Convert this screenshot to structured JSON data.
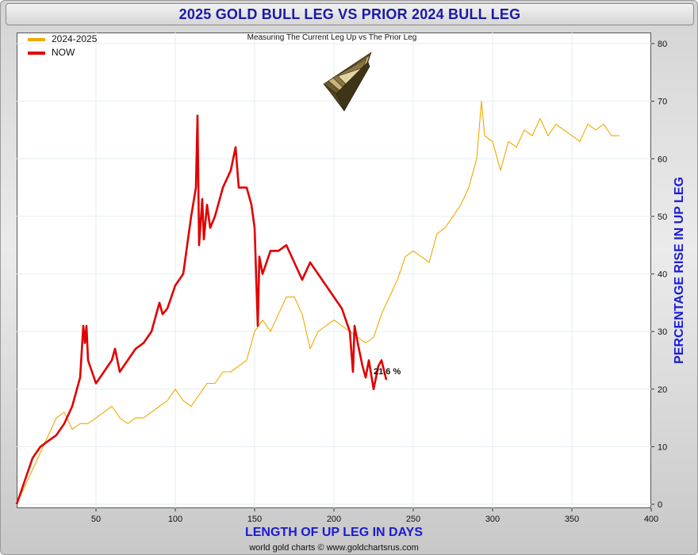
{
  "title": "2025 GOLD BULL LEG VS PRIOR 2024 BULL LEG",
  "subtitle": "Measuring The Current Leg Up vs The Prior Leg",
  "credit": "world gold charts © www.goldchartsrus.com",
  "colors": {
    "prior": "#f0a800",
    "now": "#e00000",
    "title_text": "#1a1aa6",
    "axis_label": "#1a1ad6"
  },
  "icons": {
    "gold_bars": "gold-bars-stack-icon"
  },
  "chart_data": {
    "type": "line",
    "title": "2025 GOLD BULL LEG VS PRIOR 2024 BULL LEG",
    "subtitle": "Measuring The Current Leg Up vs The Prior Leg",
    "xlabel": "LENGTH OF UP LEG IN DAYS",
    "ylabel": "PERCENTAGE RISE IN UP LEG",
    "xlim": [
      0,
      400
    ],
    "ylim": [
      0,
      80
    ],
    "x_ticks": [
      50,
      100,
      150,
      200,
      250,
      300,
      350,
      400
    ],
    "y_ticks": [
      0,
      10,
      20,
      30,
      40,
      50,
      60,
      70,
      80
    ],
    "y_axis_side": "right",
    "grid": true,
    "legend_position": "top-left",
    "annotation": "21.6 %",
    "series": [
      {
        "name": "2024-2025",
        "color": "#f0a800",
        "x": [
          0,
          5,
          10,
          15,
          20,
          25,
          30,
          35,
          40,
          45,
          50,
          55,
          60,
          65,
          70,
          75,
          80,
          85,
          90,
          95,
          100,
          105,
          110,
          115,
          120,
          125,
          130,
          135,
          140,
          145,
          150,
          155,
          160,
          165,
          170,
          175,
          180,
          185,
          190,
          195,
          200,
          205,
          210,
          215,
          220,
          225,
          230,
          235,
          240,
          245,
          250,
          255,
          260,
          265,
          270,
          275,
          280,
          285,
          290,
          293,
          295,
          300,
          305,
          310,
          315,
          320,
          325,
          330,
          335,
          340,
          345,
          350,
          355,
          360,
          365,
          370,
          375,
          380
        ],
        "values": [
          0,
          3,
          6,
          9,
          12,
          15,
          16,
          13,
          14,
          14,
          15,
          16,
          17,
          15,
          14,
          15,
          15,
          16,
          17,
          18,
          20,
          18,
          17,
          19,
          21,
          21,
          23,
          23,
          24,
          25,
          30,
          32,
          30,
          33,
          36,
          36,
          33,
          27,
          30,
          31,
          32,
          31,
          30,
          29,
          28,
          29,
          33,
          36,
          39,
          43,
          44,
          43,
          42,
          47,
          48,
          50,
          52,
          55,
          60,
          70,
          64,
          63,
          58,
          63,
          62,
          65,
          64,
          67,
          64,
          66,
          65,
          64,
          63,
          66,
          65,
          66,
          64,
          64
        ]
      },
      {
        "name": "NOW",
        "color": "#e00000",
        "x": [
          0,
          5,
          10,
          15,
          20,
          25,
          30,
          35,
          40,
          42,
          43,
          44,
          45,
          50,
          55,
          60,
          62,
          65,
          70,
          75,
          80,
          85,
          90,
          92,
          95,
          100,
          105,
          110,
          113,
          114,
          115,
          117,
          118,
          120,
          122,
          125,
          130,
          135,
          138,
          140,
          145,
          148,
          150,
          152,
          153,
          155,
          160,
          165,
          170,
          175,
          180,
          185,
          190,
          195,
          200,
          205,
          210,
          212,
          213,
          215,
          218,
          220,
          222,
          225,
          228,
          230,
          233
        ],
        "values": [
          0,
          4,
          8,
          10,
          11,
          12,
          14,
          17,
          22,
          31,
          28,
          31,
          25,
          21,
          23,
          25,
          27,
          23,
          25,
          27,
          28,
          30,
          35,
          33,
          34,
          38,
          40,
          50,
          55,
          67.5,
          45,
          53,
          46,
          52,
          48,
          50,
          55,
          58,
          62,
          55,
          55,
          52,
          48,
          31,
          43,
          40,
          44,
          44,
          45,
          42,
          39,
          42,
          40,
          38,
          36,
          34,
          30,
          23,
          31,
          28,
          24,
          22,
          25,
          20,
          24,
          25,
          21.6
        ]
      }
    ]
  }
}
